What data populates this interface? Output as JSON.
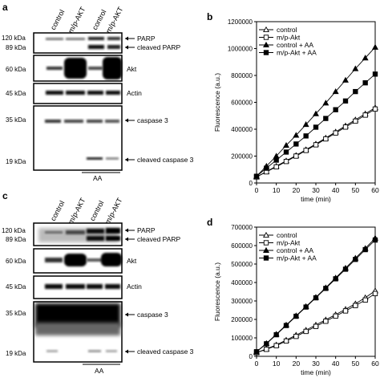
{
  "panels": {
    "a": {
      "letter": "a",
      "lanes": [
        "control",
        "m/p-AKT",
        "control",
        "m/p-AKT"
      ],
      "mw": {
        "parp1": "120 kDa",
        "parp2": "89 kDa",
        "akt": "60 kDa",
        "actin": "45 kDa",
        "casp": "35 kDa",
        "cleaved": "19 kDa"
      },
      "labels": {
        "parp": "PARP",
        "cleaved_parp": "cleaved PARP",
        "akt": "Akt",
        "actin": "Actin",
        "caspase": "caspase 3",
        "cleaved_caspase": "cleaved caspase 3"
      },
      "treatment": "AA"
    },
    "c": {
      "letter": "c",
      "lanes": [
        "control",
        "m/p-AKT",
        "control",
        "m/p-AKT"
      ],
      "mw": {
        "parp1": "120 kDa",
        "parp2": "89 kDa",
        "akt": "60 kDa",
        "actin": "45 kDa",
        "casp": "35 kDa",
        "cleaved": "19 kDa"
      },
      "labels": {
        "parp": "PARP",
        "cleaved_parp": "cleaved PARP",
        "akt": "Akt",
        "actin": "Actin",
        "caspase": "caspase 3",
        "cleaved_caspase": "cleaved caspase 3"
      },
      "treatment": "AA"
    },
    "b": {
      "letter": "b"
    },
    "d": {
      "letter": "d"
    }
  },
  "chart_data": [
    {
      "type": "line",
      "id": "b",
      "xlabel": "time (min)",
      "ylabel": "Fluorescence (a.u.)",
      "xlim": [
        0,
        60
      ],
      "ylim": [
        0,
        1200000
      ],
      "xticks": [
        0,
        10,
        20,
        30,
        40,
        50,
        60
      ],
      "yticks": [
        0,
        200000,
        400000,
        600000,
        800000,
        1000000,
        1200000
      ],
      "legend_position": "top-left",
      "x": [
        0,
        5,
        10,
        15,
        20,
        25,
        30,
        35,
        40,
        45,
        50,
        55,
        60
      ],
      "series": [
        {
          "name": "control",
          "marker": "triangle-open",
          "values": [
            45000,
            85000,
            125000,
            165000,
            205000,
            248000,
            290000,
            335000,
            380000,
            425000,
            470000,
            515000,
            560000
          ]
        },
        {
          "name": "m/p-Akt",
          "marker": "square-open",
          "values": [
            45000,
            83000,
            120000,
            160000,
            200000,
            242000,
            284000,
            328000,
            372000,
            416000,
            460000,
            505000,
            550000
          ]
        },
        {
          "name": "control + AA",
          "marker": "triangle-filled",
          "values": [
            50000,
            125000,
            200000,
            280000,
            355000,
            435000,
            515000,
            595000,
            680000,
            765000,
            850000,
            930000,
            1010000
          ]
        },
        {
          "name": "m/p-Akt + AA",
          "marker": "square-filled",
          "values": [
            50000,
            110000,
            170000,
            230000,
            290000,
            350000,
            415000,
            480000,
            545000,
            610000,
            680000,
            745000,
            810000
          ]
        }
      ]
    },
    {
      "type": "line",
      "id": "d",
      "xlabel": "time (min)",
      "ylabel": "Fluorescence (a.u.)",
      "xlim": [
        0,
        60
      ],
      "ylim": [
        0,
        700000
      ],
      "xticks": [
        0,
        10,
        20,
        30,
        40,
        50,
        60
      ],
      "yticks": [
        0,
        100000,
        200000,
        300000,
        400000,
        500000,
        600000,
        700000
      ],
      "legend_position": "top-left",
      "x": [
        0,
        5,
        10,
        15,
        20,
        25,
        30,
        35,
        40,
        45,
        50,
        55,
        60
      ],
      "series": [
        {
          "name": "control",
          "marker": "triangle-open",
          "values": [
            20000,
            40000,
            62000,
            88000,
            115000,
            142000,
            170000,
            198000,
            226000,
            255000,
            285000,
            318000,
            355000
          ]
        },
        {
          "name": "m/p-Akt",
          "marker": "square-open",
          "values": [
            20000,
            38000,
            58000,
            83000,
            108000,
            135000,
            162000,
            190000,
            218000,
            246000,
            275000,
            305000,
            340000
          ]
        },
        {
          "name": "control + AA",
          "marker": "triangle-filled",
          "values": [
            25000,
            70000,
            120000,
            170000,
            220000,
            270000,
            320000,
            372000,
            425000,
            478000,
            532000,
            585000,
            640000
          ]
        },
        {
          "name": "m/p-Akt + AA",
          "marker": "square-filled",
          "values": [
            25000,
            68000,
            117000,
            167000,
            217000,
            267000,
            317000,
            368000,
            420000,
            472000,
            525000,
            578000,
            630000
          ]
        }
      ]
    }
  ]
}
